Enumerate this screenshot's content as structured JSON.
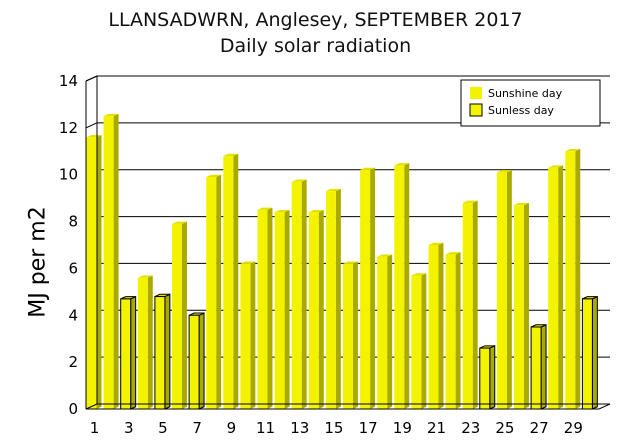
{
  "chart_data": {
    "type": "bar",
    "title": "LLANSADWRN, Anglesey, SEPTEMBER 2017",
    "subtitle": "Daily solar radiation",
    "ylabel": "MJ per m2",
    "xlabel": "",
    "ylim": [
      0,
      14
    ],
    "yticks": [
      "0",
      "2",
      "4",
      "6",
      "8",
      "10",
      "12",
      "14"
    ],
    "xtick_labels": [
      "1",
      "3",
      "5",
      "7",
      "9",
      "11",
      "13",
      "15",
      "17",
      "19",
      "21",
      "23",
      "25",
      "27",
      "29"
    ],
    "grid": true,
    "legend_position": "top-right",
    "days": [
      1,
      2,
      3,
      4,
      5,
      6,
      7,
      8,
      9,
      10,
      11,
      12,
      13,
      14,
      15,
      16,
      17,
      18,
      19,
      20,
      21,
      22,
      23,
      24,
      25,
      26,
      27,
      28,
      29,
      30
    ],
    "series": [
      {
        "name": "Sunshine day",
        "color": "#f3f300",
        "values": [
          11.6,
          12.5,
          null,
          5.6,
          null,
          7.9,
          null,
          9.9,
          10.8,
          6.2,
          8.5,
          8.4,
          9.7,
          8.4,
          9.3,
          6.2,
          10.2,
          6.5,
          10.4,
          5.7,
          7.0,
          6.6,
          8.8,
          null,
          10.1,
          8.7,
          null,
          10.3,
          11.0,
          null
        ]
      },
      {
        "name": "Sunless day",
        "color": "#f3f300",
        "values": [
          null,
          null,
          4.7,
          null,
          4.8,
          null,
          4.0,
          null,
          null,
          null,
          null,
          null,
          null,
          null,
          null,
          null,
          null,
          null,
          null,
          null,
          null,
          null,
          null,
          2.6,
          null,
          null,
          3.5,
          null,
          null,
          4.7
        ]
      }
    ]
  }
}
